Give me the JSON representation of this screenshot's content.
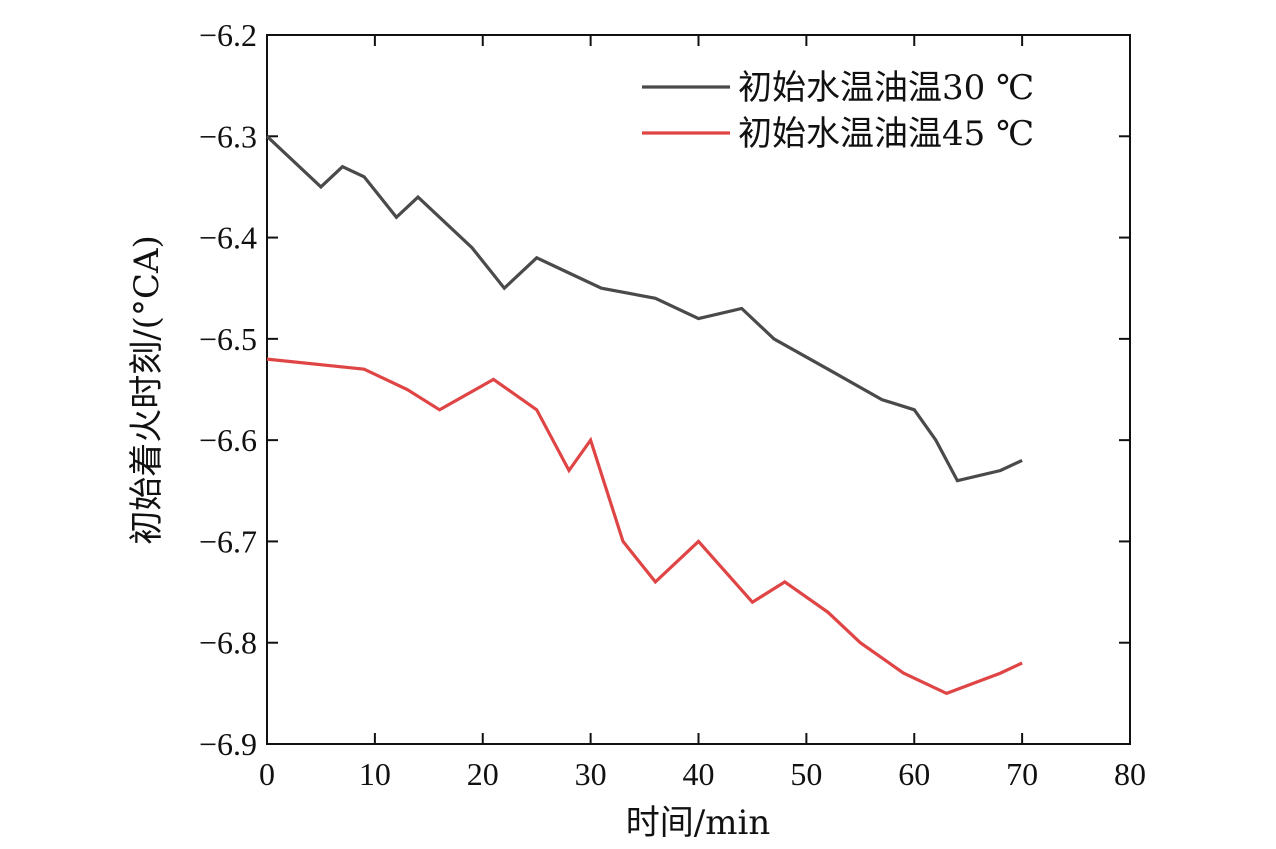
{
  "chart_data": {
    "type": "line",
    "xlabel": "时间/min",
    "ylabel": "初始着火时刻/(°CA)",
    "xlim": [
      0,
      80
    ],
    "ylim": [
      -6.9,
      -6.2
    ],
    "x_ticks": [
      "0",
      "10",
      "20",
      "30",
      "40",
      "50",
      "60",
      "70",
      "80"
    ],
    "y_ticks": [
      "-6.2",
      "-6.3",
      "-6.4",
      "-6.5",
      "-6.6",
      "-6.7",
      "-6.8",
      "-6.9"
    ],
    "legend_position": "top-right",
    "grid": false,
    "series": [
      {
        "name": "初始水温油温30 ℃",
        "color": "#4a4a4a",
        "x": [
          0,
          5,
          7,
          9,
          12,
          14,
          19,
          22,
          25,
          28,
          31,
          36,
          40,
          44,
          47,
          52,
          57,
          60,
          62,
          64,
          68,
          70
        ],
        "y": [
          -6.3,
          -6.35,
          -6.33,
          -6.34,
          -6.38,
          -6.36,
          -6.41,
          -6.45,
          -6.42,
          -6.435,
          -6.45,
          -6.46,
          -6.48,
          -6.47,
          -6.5,
          -6.53,
          -6.56,
          -6.57,
          -6.6,
          -6.64,
          -6.63,
          -6.62
        ]
      },
      {
        "name": "初始水温油温45 ℃",
        "color": "#e04545",
        "x": [
          0,
          9,
          13,
          16,
          21,
          25,
          28,
          30,
          33,
          36,
          40,
          45,
          48,
          52,
          55,
          59,
          63,
          68,
          70
        ],
        "y": [
          -6.52,
          -6.53,
          -6.55,
          -6.57,
          -6.54,
          -6.57,
          -6.63,
          -6.6,
          -6.7,
          -6.74,
          -6.7,
          -6.76,
          -6.74,
          -6.77,
          -6.8,
          -6.83,
          -6.85,
          -6.83,
          -6.82
        ]
      }
    ]
  }
}
